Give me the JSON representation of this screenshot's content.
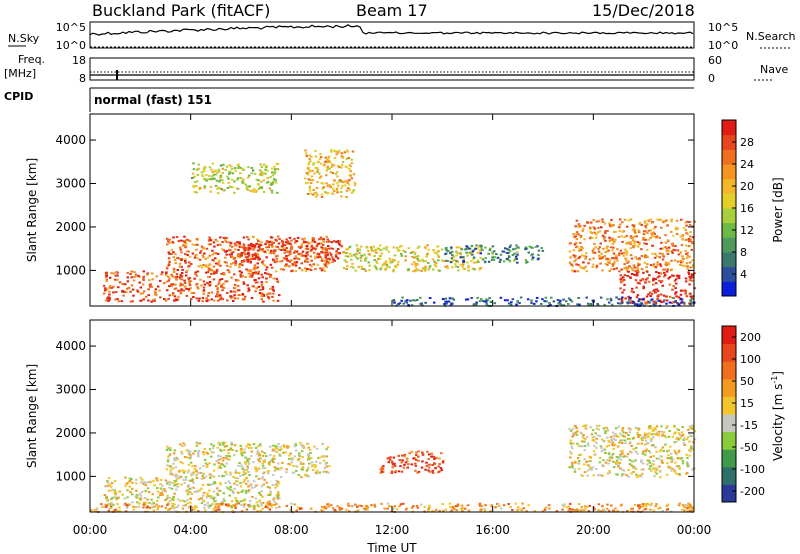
{
  "header": {
    "title": "Buckland Park (fitACF)",
    "beam": "Beam 17",
    "date": "15/Dec/2018"
  },
  "strips": {
    "nsky": {
      "label": "N.Sky",
      "ticks_left": [
        "10^5",
        "10^0"
      ],
      "right_label": "N.Search",
      "ticks_right": [
        "10^5",
        "10^0"
      ]
    },
    "freq": {
      "label_top": "Freq.",
      "label_unit": "[MHz]",
      "ticks_left": [
        "18",
        "8"
      ],
      "right_label": "Nave",
      "ticks_right": [
        "60",
        "0"
      ]
    },
    "cpid": {
      "label": "CPID",
      "text": "normal (fast) 151"
    }
  },
  "chart_data": [
    {
      "type": "heatmap",
      "name": "power",
      "ylabel": "Slant Range [km]",
      "ylim": [
        180,
        4600
      ],
      "yticks": [
        "1000",
        "2000",
        "3000",
        "4000"
      ],
      "xlabel": "Time UT",
      "xlim_hours": [
        0,
        24
      ],
      "xticks": [
        "00:00",
        "04:00",
        "08:00",
        "12:00",
        "16:00",
        "20:00",
        "00:00"
      ],
      "colorbar": {
        "label": "Power [dB]",
        "ticks": [
          "4",
          "8",
          "12",
          "16",
          "20",
          "24",
          "28"
        ],
        "colors": [
          "#0a1edc",
          "#2c4e9c",
          "#3a7a6e",
          "#4d9a5a",
          "#6cb945",
          "#a8cf3d",
          "#e2cf2a",
          "#f3b62b",
          "#f59421",
          "#ef6f1e",
          "#e8461c",
          "#e01c14"
        ]
      },
      "regions": [
        {
          "t": [
            0.5,
            7.5
          ],
          "r": [
            300,
            1000
          ],
          "level": 0.85
        },
        {
          "t": [
            3.0,
            9.5
          ],
          "r": [
            1000,
            1800
          ],
          "level": 0.8
        },
        {
          "t": [
            5.5,
            10.0
          ],
          "r": [
            1200,
            1700
          ],
          "level": 0.9
        },
        {
          "t": [
            10.0,
            15.5
          ],
          "r": [
            1000,
            1600
          ],
          "level": 0.55
        },
        {
          "t": [
            14.0,
            18.0
          ],
          "r": [
            1200,
            1600
          ],
          "level": 0.25
        },
        {
          "t": [
            19.0,
            24.0
          ],
          "r": [
            1000,
            2200
          ],
          "level": 0.75
        },
        {
          "t": [
            21.0,
            24.0
          ],
          "r": [
            250,
            1000
          ],
          "level": 0.95
        },
        {
          "t": [
            8.5,
            10.5
          ],
          "r": [
            2700,
            3800
          ],
          "level": 0.65
        },
        {
          "t": [
            4.0,
            7.5
          ],
          "r": [
            2800,
            3500
          ],
          "level": 0.5
        },
        {
          "t": [
            12.0,
            24.0
          ],
          "r": [
            200,
            400
          ],
          "level": 0.15
        }
      ]
    },
    {
      "type": "heatmap",
      "name": "velocity",
      "ylabel": "Slant Range [km]",
      "ylim": [
        180,
        4600
      ],
      "yticks": [
        "1000",
        "2000",
        "3000",
        "4000"
      ],
      "xlabel": "Time UT",
      "xlim_hours": [
        0,
        24
      ],
      "xticks": [
        "00:00",
        "04:00",
        "08:00",
        "12:00",
        "16:00",
        "20:00",
        "00:00"
      ],
      "colorbar": {
        "label": "Velocity [m s",
        "label_sup": "-1",
        "label_end": "]",
        "ticks": [
          "200",
          "100",
          "50",
          "15",
          "-15",
          "-50",
          "-100",
          "-200"
        ],
        "colors": [
          "#2a3a9a",
          "#2f6f6a",
          "#3f9a4a",
          "#8acb3a",
          "#c7c7c0",
          "#f3c52b",
          "#f39a21",
          "#ef6f1e",
          "#e8461c",
          "#e01c14"
        ]
      },
      "regions": [
        {
          "t": [
            0.5,
            7.5
          ],
          "r": [
            300,
            1000
          ],
          "level": 0.5
        },
        {
          "t": [
            3.0,
            9.5
          ],
          "r": [
            1000,
            1800
          ],
          "level": 0.5
        },
        {
          "t": [
            11.5,
            14.0
          ],
          "r": [
            1100,
            1600
          ],
          "level": 0.85
        },
        {
          "t": [
            19.0,
            24.0
          ],
          "r": [
            1000,
            2200
          ],
          "level": 0.5
        },
        {
          "t": [
            0.0,
            24.0
          ],
          "r": [
            200,
            400
          ],
          "level": 0.65
        }
      ]
    }
  ]
}
